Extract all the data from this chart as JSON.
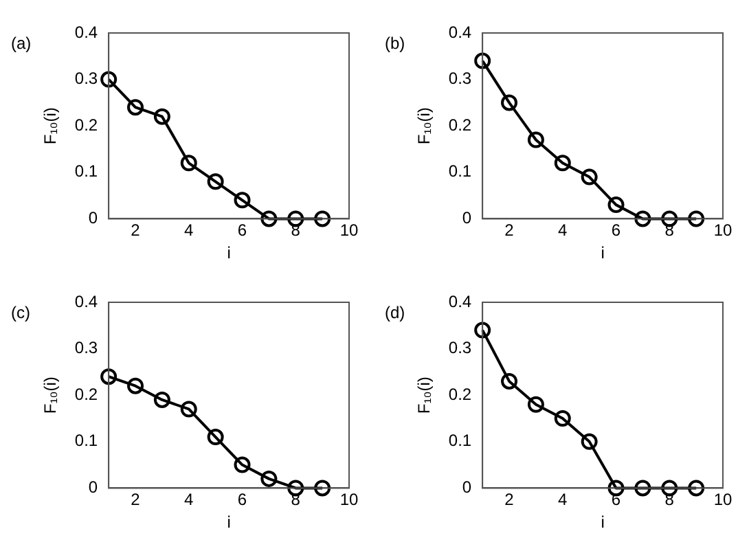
{
  "chart_data": [
    {
      "type": "line",
      "title": "(a)",
      "xlabel": "i",
      "ylabel": "F₁₀(i)",
      "x": [
        1,
        2,
        3,
        4,
        5,
        6,
        7,
        8,
        9
      ],
      "series": [
        {
          "color": "#000000",
          "values": [
            0.3,
            0.24,
            0.22,
            0.12,
            0.08,
            0.04,
            0,
            0,
            0
          ]
        }
      ],
      "xlim": [
        1,
        10
      ],
      "xticks": [
        2,
        4,
        6,
        8,
        10
      ],
      "ylim": [
        0,
        0.4
      ],
      "yticks": [
        0,
        0.1,
        0.2,
        0.3,
        0.4
      ],
      "grid": false,
      "legend": false,
      "marker": "circle",
      "line_style": "solid"
    },
    {
      "type": "line",
      "title": "(b)",
      "xlabel": "i",
      "ylabel": "F₁₀(i)",
      "x": [
        1,
        2,
        3,
        4,
        5,
        6,
        7,
        8,
        9
      ],
      "series": [
        {
          "color": "#000000",
          "values": [
            0.34,
            0.25,
            0.17,
            0.12,
            0.09,
            0.03,
            0,
            0,
            0
          ]
        }
      ],
      "xlim": [
        1,
        10
      ],
      "xticks": [
        2,
        4,
        6,
        8,
        10
      ],
      "ylim": [
        0,
        0.4
      ],
      "yticks": [
        0,
        0.1,
        0.2,
        0.3,
        0.4
      ],
      "grid": false,
      "legend": false,
      "marker": "circle",
      "line_style": "solid"
    },
    {
      "type": "line",
      "title": "(c)",
      "xlabel": "i",
      "ylabel": "F₁₀(i)",
      "x": [
        1,
        2,
        3,
        4,
        5,
        6,
        7,
        8,
        9
      ],
      "series": [
        {
          "color": "#000000",
          "values": [
            0.24,
            0.22,
            0.19,
            0.17,
            0.11,
            0.05,
            0.02,
            0,
            0
          ]
        }
      ],
      "xlim": [
        1,
        10
      ],
      "xticks": [
        2,
        4,
        6,
        8,
        10
      ],
      "ylim": [
        0,
        0.4
      ],
      "yticks": [
        0,
        0.1,
        0.2,
        0.3,
        0.4
      ],
      "grid": false,
      "legend": false,
      "marker": "circle",
      "line_style": "solid"
    },
    {
      "type": "line",
      "title": "(d)",
      "xlabel": "i",
      "ylabel": "F₁₀(i)",
      "x": [
        1,
        2,
        3,
        4,
        5,
        6,
        7,
        8,
        9
      ],
      "series": [
        {
          "color": "#000000",
          "values": [
            0.34,
            0.23,
            0.18,
            0.15,
            0.1,
            0,
            0,
            0,
            0
          ]
        }
      ],
      "xlim": [
        1,
        10
      ],
      "xticks": [
        2,
        4,
        6,
        8,
        10
      ],
      "ylim": [
        0,
        0.4
      ],
      "yticks": [
        0,
        0.1,
        0.2,
        0.3,
        0.4
      ],
      "grid": false,
      "legend": false,
      "marker": "circle",
      "line_style": "solid"
    }
  ]
}
